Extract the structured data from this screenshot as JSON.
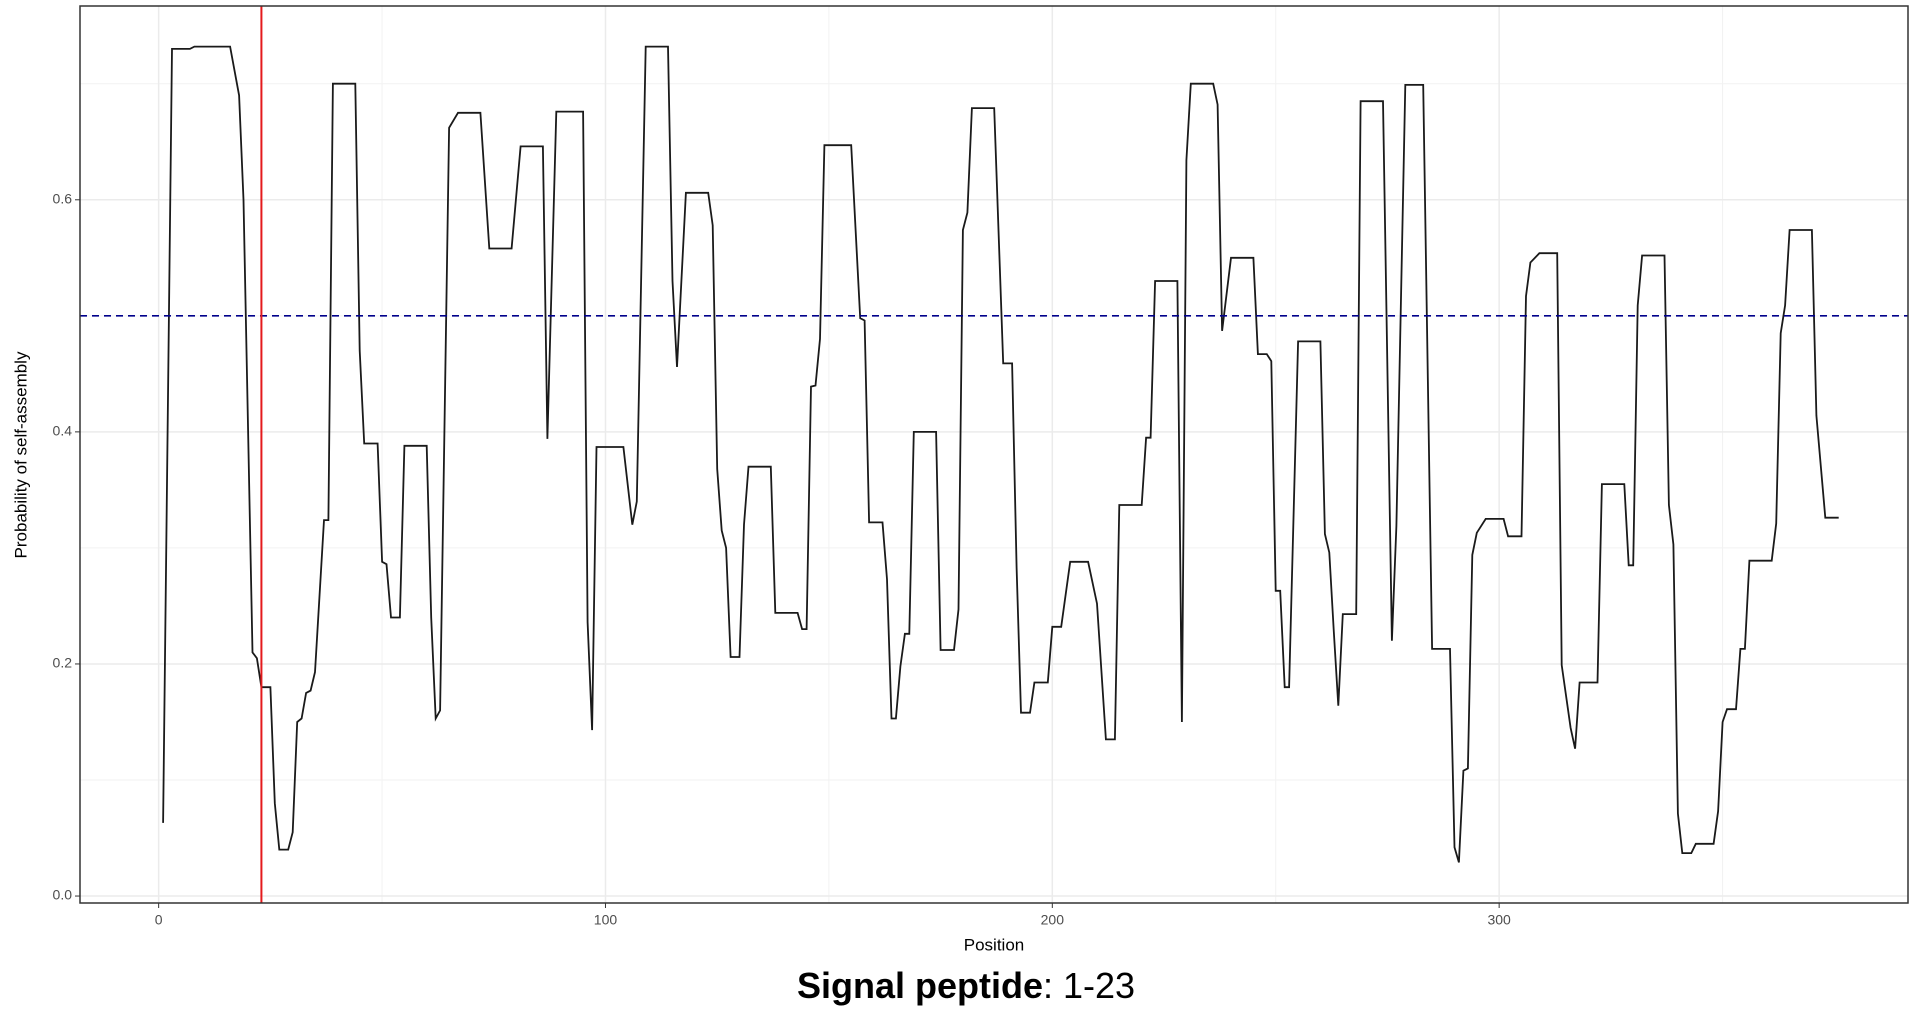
{
  "chart_data": {
    "type": "line",
    "x_label": "Position",
    "y_label": "Probability of self-assembly",
    "caption_bold": "Signal peptide",
    "caption_text": ": 1-23",
    "x": [
      1,
      3,
      7,
      8,
      16,
      18,
      19,
      21,
      22,
      23,
      25,
      26,
      27,
      29,
      30,
      31,
      32,
      33,
      34,
      35,
      37,
      38,
      39,
      44,
      45,
      46,
      49,
      50,
      51,
      52,
      54,
      55,
      60,
      61,
      62,
      63,
      65,
      67,
      72,
      74,
      79,
      81,
      86,
      87,
      89,
      95,
      96,
      97,
      98,
      104,
      106,
      107,
      109,
      114,
      115,
      116,
      118,
      123,
      124,
      125,
      126,
      127,
      128,
      130,
      131,
      132,
      137,
      138,
      143,
      144,
      145,
      146,
      147,
      148,
      149,
      155,
      157,
      158,
      159,
      162,
      163,
      164,
      165,
      166,
      167,
      168,
      169,
      174,
      175,
      178,
      179,
      180,
      181,
      182,
      187,
      189,
      191,
      192,
      193,
      195,
      196,
      199,
      200,
      202,
      204,
      208,
      210,
      212,
      214,
      215,
      220,
      221,
      222,
      223,
      228,
      229,
      230,
      231,
      236,
      237,
      238,
      240,
      245,
      246,
      248,
      249,
      250,
      251,
      252,
      253,
      255,
      260,
      261,
      262,
      263,
      264,
      265,
      268,
      269,
      274,
      276,
      277,
      279,
      283,
      285,
      289,
      290,
      291,
      292,
      293,
      294,
      295,
      297,
      301,
      302,
      305,
      306,
      307,
      309,
      313,
      314,
      316,
      317,
      318,
      322,
      323,
      328,
      329,
      330,
      331,
      332,
      337,
      338,
      339,
      340,
      341,
      343,
      344,
      348,
      349,
      350,
      351,
      353,
      354,
      355,
      356,
      361,
      362,
      363,
      364,
      365,
      370,
      371,
      373,
      376
    ],
    "series": [
      {
        "name": "probability",
        "color": "#1a1a1a",
        "values": [
          0.063,
          0.73,
          0.73,
          0.732,
          0.732,
          0.69,
          0.6,
          0.21,
          0.205,
          0.18,
          0.18,
          0.08,
          0.04,
          0.04,
          0.055,
          0.15,
          0.153,
          0.175,
          0.177,
          0.193,
          0.324,
          0.324,
          0.7,
          0.7,
          0.47,
          0.39,
          0.39,
          0.288,
          0.286,
          0.24,
          0.24,
          0.388,
          0.388,
          0.24,
          0.153,
          0.16,
          0.662,
          0.675,
          0.675,
          0.558,
          0.558,
          0.646,
          0.646,
          0.394,
          0.676,
          0.676,
          0.236,
          0.143,
          0.387,
          0.387,
          0.32,
          0.34,
          0.732,
          0.732,
          0.53,
          0.456,
          0.606,
          0.606,
          0.578,
          0.368,
          0.315,
          0.3,
          0.206,
          0.206,
          0.32,
          0.37,
          0.37,
          0.244,
          0.244,
          0.23,
          0.23,
          0.439,
          0.44,
          0.48,
          0.647,
          0.647,
          0.498,
          0.496,
          0.322,
          0.322,
          0.273,
          0.153,
          0.153,
          0.198,
          0.226,
          0.226,
          0.4,
          0.4,
          0.212,
          0.212,
          0.247,
          0.574,
          0.589,
          0.679,
          0.679,
          0.459,
          0.459,
          0.283,
          0.158,
          0.158,
          0.184,
          0.184,
          0.232,
          0.232,
          0.288,
          0.288,
          0.252,
          0.135,
          0.135,
          0.337,
          0.337,
          0.395,
          0.395,
          0.53,
          0.53,
          0.15,
          0.634,
          0.7,
          0.7,
          0.682,
          0.487,
          0.55,
          0.55,
          0.467,
          0.467,
          0.461,
          0.263,
          0.263,
          0.18,
          0.18,
          0.478,
          0.478,
          0.312,
          0.296,
          0.228,
          0.164,
          0.243,
          0.243,
          0.685,
          0.685,
          0.22,
          0.319,
          0.699,
          0.699,
          0.213,
          0.213,
          0.042,
          0.029,
          0.108,
          0.11,
          0.294,
          0.313,
          0.325,
          0.325,
          0.31,
          0.31,
          0.517,
          0.546,
          0.554,
          0.554,
          0.199,
          0.145,
          0.127,
          0.184,
          0.184,
          0.355,
          0.355,
          0.285,
          0.285,
          0.509,
          0.552,
          0.552,
          0.337,
          0.303,
          0.071,
          0.037,
          0.037,
          0.045,
          0.045,
          0.073,
          0.15,
          0.161,
          0.161,
          0.213,
          0.213,
          0.289,
          0.289,
          0.321,
          0.485,
          0.509,
          0.574,
          0.574,
          0.414,
          0.326,
          0.326
        ]
      }
    ],
    "vline": 23,
    "vline_color": "#e41a1c",
    "hline": 0.5,
    "hline_color": "#00008b",
    "xlim": [
      -17.6,
      391.5
    ],
    "ylim": [
      -0.006,
      0.767
    ],
    "xticks": [
      0,
      100,
      200,
      300
    ],
    "yticks": [
      {
        "value": 0,
        "label": "0.0"
      },
      {
        "value": 0.2,
        "label": "0.2"
      },
      {
        "value": 0.4,
        "label": "0.4"
      },
      {
        "value": 0.6,
        "label": "0.6"
      }
    ],
    "grid": true
  }
}
